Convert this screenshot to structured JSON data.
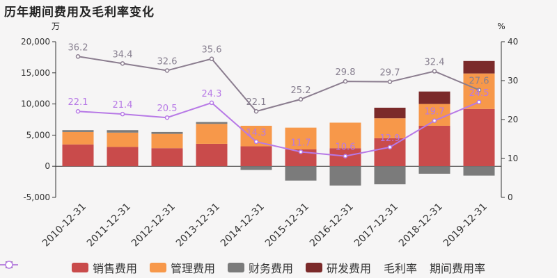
{
  "title": "历年期间费用及毛利率变化",
  "chart_data": {
    "type": "bar",
    "categories": [
      "2010-12-31",
      "2011-12-31",
      "2012-12-31",
      "2013-12-31",
      "2014-12-31",
      "2015-12-31",
      "2016-12-31",
      "2017-12-31",
      "2018-12-31",
      "2019-12-31"
    ],
    "left_axis": {
      "unit": "万",
      "ylim": [
        -5000,
        20000
      ],
      "ticks": [
        -5000,
        0,
        5000,
        10000,
        15000,
        20000
      ]
    },
    "right_axis": {
      "unit": "%",
      "ylim": [
        0,
        40
      ],
      "ticks": [
        0,
        10,
        20,
        30,
        40
      ]
    },
    "series": [
      {
        "name": "销售费用",
        "kind": "bar",
        "color": "#c94b4b",
        "values": [
          3500,
          3100,
          2900,
          3600,
          3200,
          2700,
          2900,
          4500,
          6500,
          9200
        ]
      },
      {
        "name": "管理费用",
        "kind": "bar",
        "color": "#f7984a",
        "values": [
          2000,
          2300,
          2300,
          3200,
          3300,
          3500,
          4100,
          3200,
          3500,
          5700
        ]
      },
      {
        "name": "财务费用",
        "kind": "bar",
        "color": "#7b7b7b",
        "values": [
          300,
          400,
          300,
          300,
          -600,
          -2300,
          -3100,
          -2900,
          -1200,
          -1500
        ]
      },
      {
        "name": "研发费用",
        "kind": "bar",
        "color": "#7b2a2a",
        "values": [
          0,
          0,
          0,
          0,
          0,
          0,
          0,
          1700,
          2000,
          2000
        ]
      },
      {
        "name": "毛利率",
        "kind": "line",
        "axis": "right",
        "color": "#8b7d8f",
        "values": [
          36.2,
          34.4,
          32.6,
          35.6,
          22.1,
          25.2,
          29.8,
          29.7,
          32.4,
          27.6
        ]
      },
      {
        "name": "期间费用率",
        "kind": "line",
        "axis": "right",
        "color": "#b779e6",
        "values": [
          22.1,
          21.4,
          20.5,
          24.3,
          14.3,
          11.7,
          10.6,
          12.9,
          19.7,
          24.5
        ]
      }
    ],
    "grid": false,
    "legend": "bottom"
  }
}
